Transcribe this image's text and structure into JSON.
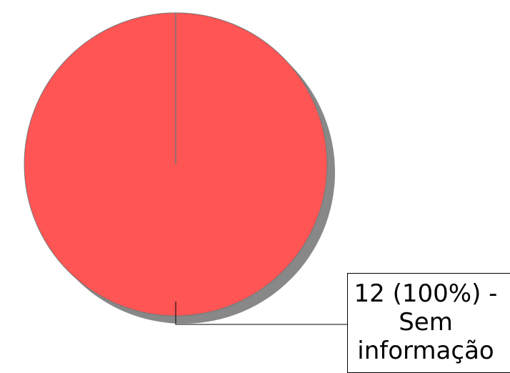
{
  "chart_data": {
    "type": "pie",
    "title": "",
    "slices": [
      {
        "value": 12,
        "percent": 100,
        "label": "Sem informação",
        "color": "#ff5555"
      }
    ],
    "data_label": {
      "count": "12 (100%) -",
      "category_line1": "Sem",
      "category_line2": "informação"
    },
    "shadow_color": "#888888",
    "edge_color": "#777777",
    "leader_color": "#000000"
  }
}
